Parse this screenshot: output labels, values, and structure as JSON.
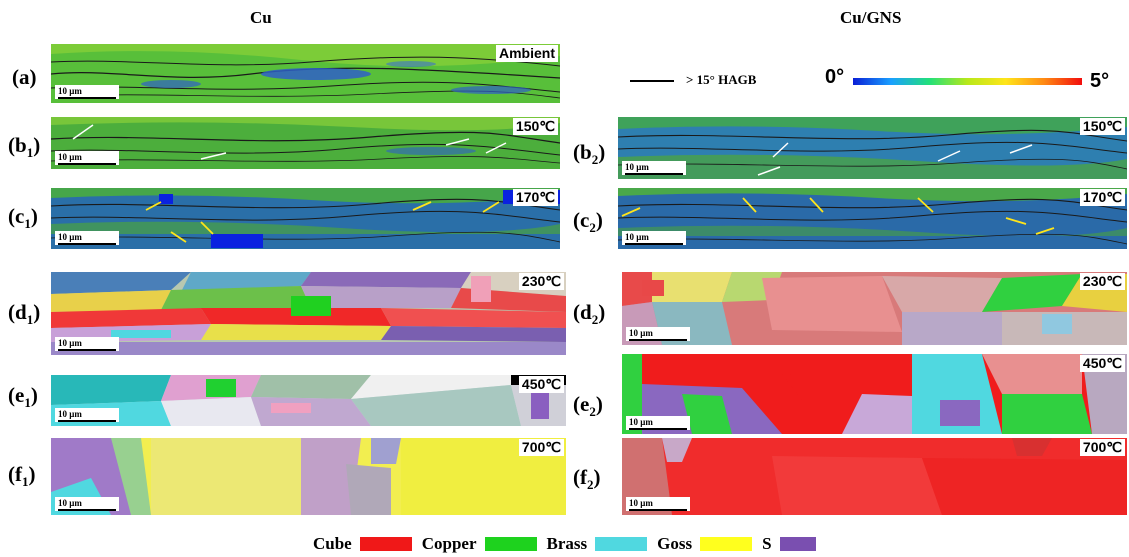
{
  "column_titles": {
    "left": "Cu",
    "right": "Cu/GNS"
  },
  "legend": {
    "hagb_label": "> 15°  HAGB",
    "colorbar_min": "0°",
    "colorbar_max": "5°"
  },
  "scale_label": "10 μm",
  "panels": [
    {
      "id": "a",
      "label_main": "(a)",
      "label_sub": "",
      "condition": "Ambient",
      "style": "kam"
    },
    {
      "id": "b1",
      "label_main": "(b",
      "label_sub": "1",
      "condition": "150℃",
      "style": "kam"
    },
    {
      "id": "b2",
      "label_main": "(b",
      "label_sub": "2",
      "condition": "150℃",
      "style": "kam"
    },
    {
      "id": "c1",
      "label_main": "(c",
      "label_sub": "1",
      "condition": "170℃",
      "style": "kam"
    },
    {
      "id": "c2",
      "label_main": "(c",
      "label_sub": "2",
      "condition": "170℃",
      "style": "kam"
    },
    {
      "id": "d1",
      "label_main": "(d",
      "label_sub": "1",
      "condition": "230℃",
      "style": "texture"
    },
    {
      "id": "d2",
      "label_main": "(d",
      "label_sub": "2",
      "condition": "230℃",
      "style": "texture"
    },
    {
      "id": "e1",
      "label_main": "(e",
      "label_sub": "1",
      "condition": "450℃",
      "style": "texture"
    },
    {
      "id": "e2",
      "label_main": "(e",
      "label_sub": "2",
      "condition": "450℃",
      "style": "texture"
    },
    {
      "id": "f1",
      "label_main": "(f",
      "label_sub": "1",
      "condition": "700℃",
      "style": "texture"
    },
    {
      "id": "f2",
      "label_main": "(f",
      "label_sub": "2",
      "condition": "700℃",
      "style": "texture"
    }
  ],
  "texture_legend": [
    {
      "name": "Cube",
      "color": "#f01818"
    },
    {
      "name": "Copper",
      "color": "#1ed21e"
    },
    {
      "name": "Brass",
      "color": "#50d8e0"
    },
    {
      "name": "Goss",
      "color": "#ffff1e"
    },
    {
      "name": "S",
      "color": "#7a4fb0"
    }
  ]
}
